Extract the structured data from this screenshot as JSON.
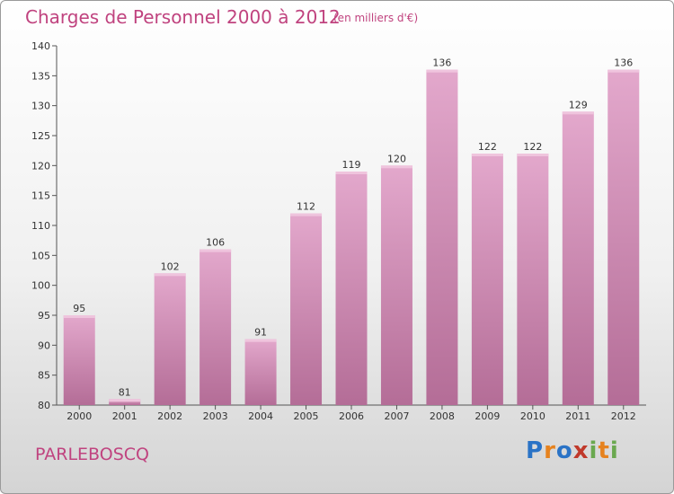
{
  "header": {
    "title": "Charges de Personnel 2000 à 2012",
    "subtitle": "(en milliers d'€)"
  },
  "footer": {
    "place": "PARLEBOSCQ",
    "logo_text": "Proxiti"
  },
  "colors": {
    "accent": "#c0437f",
    "bar_top": "#e3a8cc",
    "bar_bottom": "#b46d97",
    "bar_cap": "#efc4dd"
  },
  "chart_data": {
    "type": "bar",
    "categories": [
      "2000",
      "2001",
      "2002",
      "2003",
      "2004",
      "2005",
      "2006",
      "2007",
      "2008",
      "2009",
      "2010",
      "2011",
      "2012"
    ],
    "values": [
      95,
      81,
      102,
      106,
      91,
      112,
      119,
      120,
      136,
      122,
      122,
      129,
      136
    ],
    "title": "Charges de Personnel 2000 à 2012",
    "subtitle": "(en milliers d'€)",
    "xlabel": "",
    "ylabel": "",
    "ylim": [
      80,
      140
    ],
    "yticks": [
      80,
      85,
      90,
      95,
      100,
      105,
      110,
      115,
      120,
      125,
      130,
      135,
      140
    ],
    "grid": false,
    "data_labels": true
  }
}
